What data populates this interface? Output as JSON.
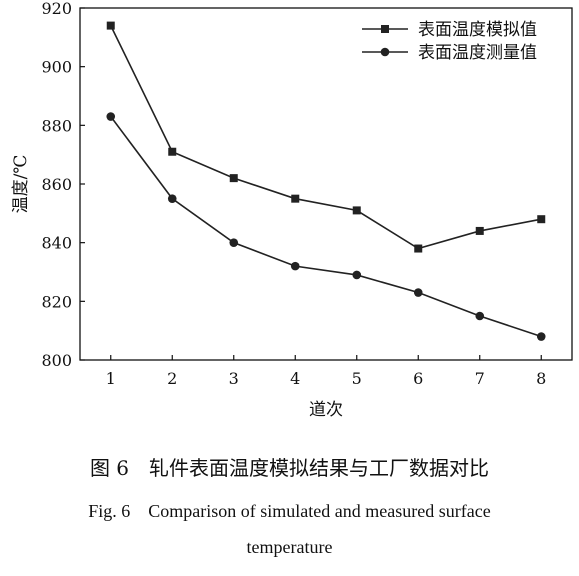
{
  "chart_data": {
    "type": "line",
    "title": "",
    "xlabel": "道次",
    "ylabel": "温度/℃",
    "x": [
      1,
      2,
      3,
      4,
      5,
      6,
      7,
      8
    ],
    "xlim": [
      0.5,
      8.5
    ],
    "ylim": [
      800,
      920
    ],
    "yticks": [
      800,
      820,
      840,
      860,
      880,
      900,
      920
    ],
    "grid": false,
    "legend_position": "top-right",
    "series": [
      {
        "name": "表面温度模拟值",
        "marker": "square",
        "values": [
          914,
          871,
          862,
          855,
          851,
          838,
          844,
          848
        ]
      },
      {
        "name": "表面温度测量值",
        "marker": "circle",
        "values": [
          883,
          855,
          840,
          832,
          829,
          823,
          815,
          808
        ]
      }
    ]
  },
  "caption": {
    "cn": "图 6　轧件表面温度模拟结果与工厂数据对比",
    "en_line1": "Fig. 6　Comparison of simulated and measured surface",
    "en_line2": "temperature"
  },
  "colors": {
    "line": "#222222",
    "axis": "#111111"
  }
}
